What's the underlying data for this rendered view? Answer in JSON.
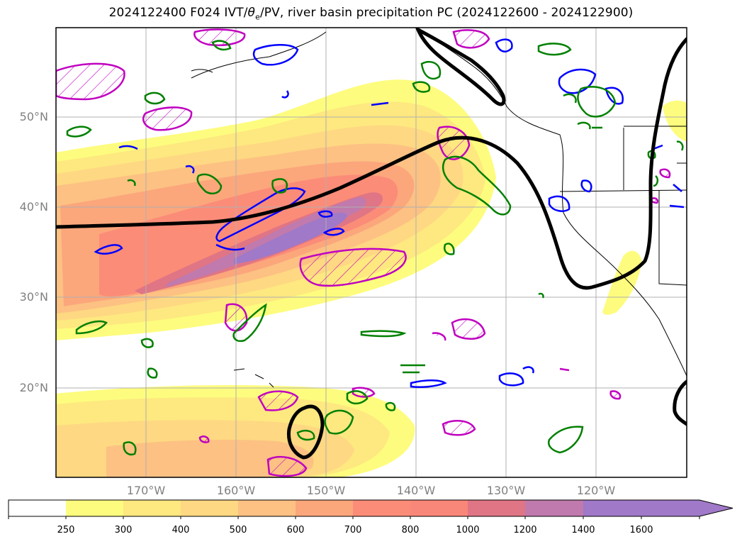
{
  "title": {
    "prefix": "2024122400 F024 IVT/",
    "theta": "θ",
    "theta_sub": "e",
    "suffix": "/PV, river basin precipitation PC (2024122600 - 2024122900)"
  },
  "map": {
    "lat_labels": [
      "50°N",
      "40°N",
      "30°N",
      "20°N"
    ],
    "lon_labels": [
      "170°W",
      "160°W",
      "150°W",
      "140°W",
      "130°W",
      "120°W"
    ],
    "gridlines": true
  },
  "colorbar": {
    "ticks": [
      "250",
      "300",
      "400",
      "500",
      "600",
      "700",
      "800",
      "1000",
      "1200",
      "1400",
      "1600"
    ],
    "colors": [
      "#ffffff",
      "#fdfc7e",
      "#fee880",
      "#fed882",
      "#fcc183",
      "#fca67c",
      "#fb8c78",
      "#f98779",
      "#e07585",
      "#c07aad",
      "#a079c8"
    ],
    "extend": "max"
  },
  "contour_colors": {
    "theta_e": "#000000",
    "pv_blue": "#0000ff",
    "pv_green": "#008000",
    "precip_magenta": "#c000c0"
  }
}
